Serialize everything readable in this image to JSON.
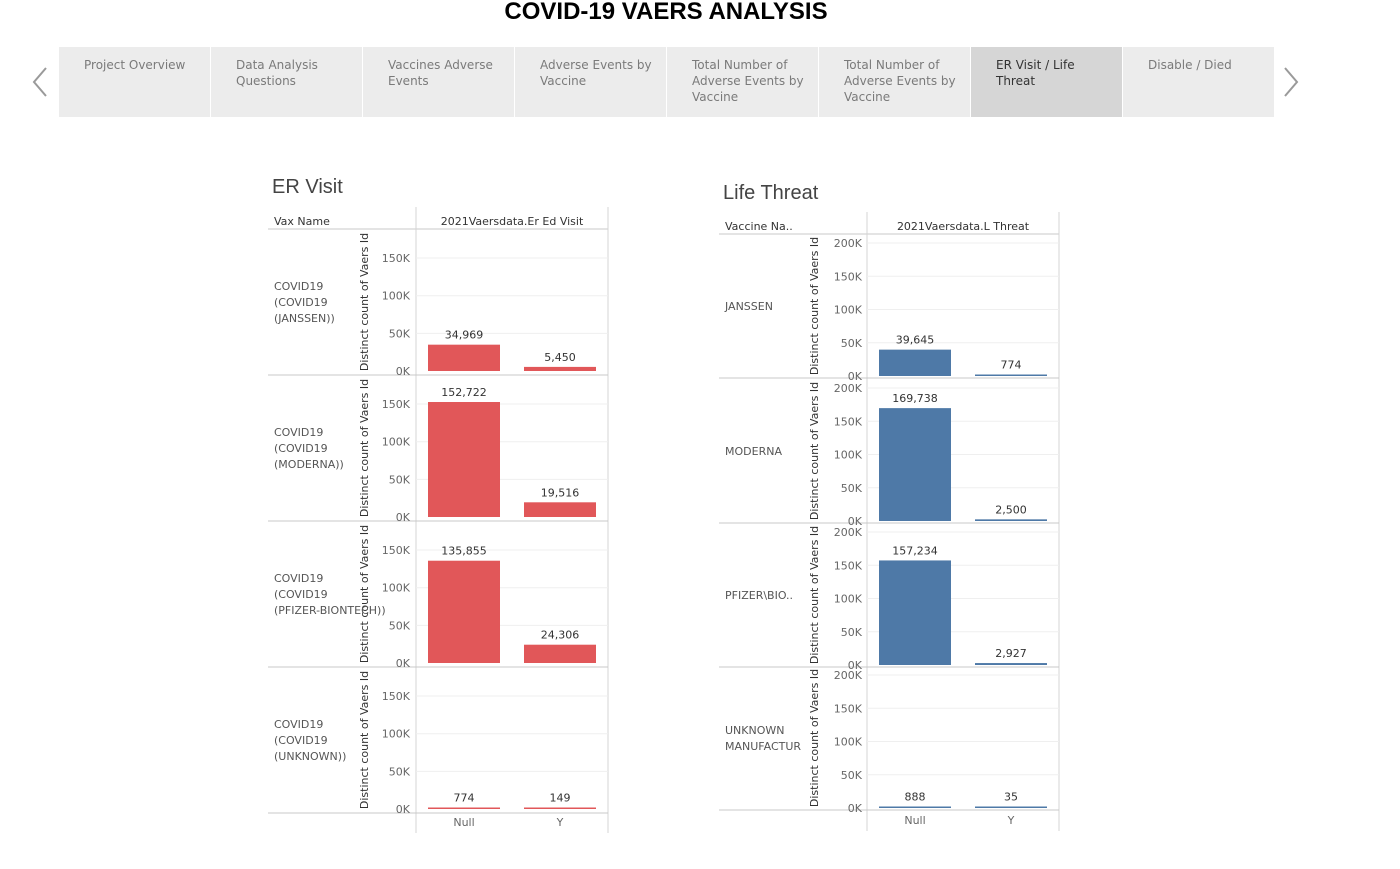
{
  "page_title": "COVID-19 VAERS ANALYSIS",
  "story_tabs": [
    {
      "label": "Project Overview",
      "active": false
    },
    {
      "label": "Data Analysis Questions",
      "active": false
    },
    {
      "label": "Vaccines Adverse Events",
      "active": false
    },
    {
      "label": "Adverse Events by Vaccine",
      "active": false
    },
    {
      "label": "Total Number of Adverse Events by Vaccine",
      "active": false
    },
    {
      "label": "Total Number of Adverse Events by Vaccine",
      "active": false
    },
    {
      "label": "ER Visit / Life Threat",
      "active": true
    },
    {
      "label": "Disable / Died",
      "active": false
    }
  ],
  "nav": {
    "prev_icon": "chevron-left-icon",
    "next_icon": "chevron-right-icon",
    "arrow_color": "#9a9a9a"
  },
  "chart_data": [
    {
      "type": "bar",
      "title": "ER Visit",
      "row_header": "Vax Name",
      "column_header": "2021Vaersdata.Er Ed Visit",
      "ylabel": "Distinct count of Vaers Id",
      "categories": [
        "Null",
        "Y"
      ],
      "color": "#e15759",
      "ylim": [
        0,
        170000
      ],
      "yticks": [
        {
          "value": 0,
          "label": "0K"
        },
        {
          "value": 50000,
          "label": "50K"
        },
        {
          "value": 100000,
          "label": "100K"
        },
        {
          "value": 150000,
          "label": "150K"
        }
      ],
      "rows": [
        {
          "name": "COVID19 (COVID19 (JANSSEN))",
          "values": [
            34969,
            5450
          ],
          "labels": [
            "34,969",
            "5,450"
          ]
        },
        {
          "name": "COVID19 (COVID19 (MODERNA))",
          "values": [
            152722,
            19516
          ],
          "labels": [
            "152,722",
            "19,516"
          ]
        },
        {
          "name": "COVID19 (COVID19 (PFIZER-BIONTECH))",
          "values": [
            135855,
            24306
          ],
          "labels": [
            "135,855",
            "24,306"
          ]
        },
        {
          "name": "COVID19 (COVID19 (UNKNOWN))",
          "values": [
            774,
            149
          ],
          "labels": [
            "774",
            "149"
          ]
        }
      ]
    },
    {
      "type": "bar",
      "title": "Life Threat",
      "row_header": "Vaccine Na..",
      "column_header": "2021Vaersdata.L Threat",
      "ylabel": "Distinct count of Vaers Id",
      "categories": [
        "Null",
        "Y"
      ],
      "color": "#4e79a7",
      "ylim": [
        0,
        200000
      ],
      "yticks": [
        {
          "value": 0,
          "label": "0K"
        },
        {
          "value": 50000,
          "label": "50K"
        },
        {
          "value": 100000,
          "label": "100K"
        },
        {
          "value": 150000,
          "label": "150K"
        },
        {
          "value": 200000,
          "label": "200K"
        }
      ],
      "rows": [
        {
          "name": "JANSSEN",
          "values": [
            39645,
            774
          ],
          "labels": [
            "39,645",
            "774"
          ]
        },
        {
          "name": "MODERNA",
          "values": [
            169738,
            2500
          ],
          "labels": [
            "169,738",
            "2,500"
          ]
        },
        {
          "name": "PFIZER\\BIO..",
          "values": [
            157234,
            2927
          ],
          "labels": [
            "157,234",
            "2,927"
          ]
        },
        {
          "name": "UNKNOWN MANUFACTUR",
          "values": [
            888,
            35
          ],
          "labels": [
            "888",
            "35"
          ]
        }
      ]
    }
  ]
}
